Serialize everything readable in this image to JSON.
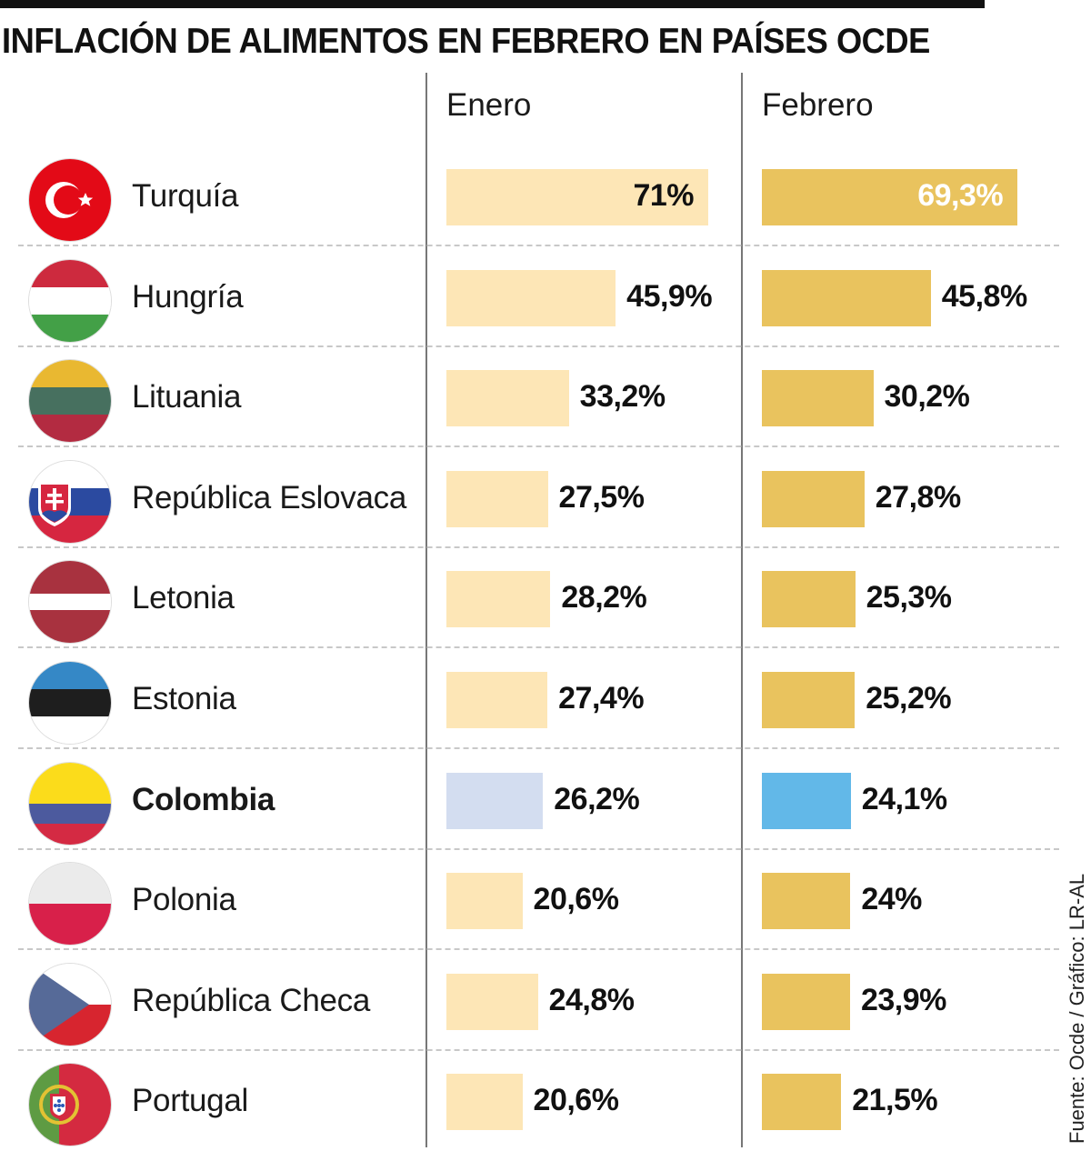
{
  "title": "INFLACIÓN DE ALIMENTOS EN FEBRERO EN PAÍSES OCDE",
  "source": "Fuente: Ocde / Gráfico: LR-AL",
  "colors": {
    "enero_bar": "#fde6b6",
    "febrero_bar": "#e9c35e",
    "colombia_enero_bar": "#d3ddf0",
    "colombia_febrero_bar": "#62b8e8",
    "separator": "#c8c8c8",
    "divider": "#777777"
  },
  "chart_data": {
    "type": "bar",
    "orientation": "horizontal",
    "title": "INFLACIÓN DE ALIMENTOS EN FEBRERO EN PAÍSES OCDE",
    "xlabel": "",
    "ylabel": "",
    "unit": "%",
    "xlim": [
      0,
      75
    ],
    "grid": false,
    "legend": "none",
    "highlight": "Colombia",
    "categories": [
      "Turquía",
      "Hungría",
      "Lituania",
      "República Eslovaca",
      "Letonia",
      "Estonia",
      "Colombia",
      "Polonia",
      "República Checa",
      "Portugal"
    ],
    "series": [
      {
        "name": "Enero",
        "values": [
          71,
          45.9,
          33.2,
          27.5,
          28.2,
          27.4,
          26.2,
          20.6,
          24.8,
          20.6
        ],
        "labels": [
          "71%",
          "45,9%",
          "33,2%",
          "27,5%",
          "28,2%",
          "27,4%",
          "26,2%",
          "20,6%",
          "24,8%",
          "20,6%"
        ]
      },
      {
        "name": "Febrero",
        "values": [
          69.3,
          45.8,
          30.2,
          27.8,
          25.3,
          25.2,
          24.1,
          24,
          23.9,
          21.5
        ],
        "labels": [
          "69,3%",
          "45,8%",
          "30,2%",
          "27,8%",
          "25,3%",
          "25,2%",
          "24,1%",
          "24%",
          "23,9%",
          "21,5%"
        ]
      }
    ]
  },
  "countries": [
    {
      "name": "Turquía",
      "flag": "turkey-flag-icon",
      "bold": false
    },
    {
      "name": "Hungría",
      "flag": "hungary-flag-icon",
      "bold": false
    },
    {
      "name": "Lituania",
      "flag": "lithuania-flag-icon",
      "bold": false
    },
    {
      "name": "República Eslovaca",
      "flag": "slovakia-flag-icon",
      "bold": false
    },
    {
      "name": "Letonia",
      "flag": "latvia-flag-icon",
      "bold": false
    },
    {
      "name": "Estonia",
      "flag": "estonia-flag-icon",
      "bold": false
    },
    {
      "name": "Colombia",
      "flag": "colombia-flag-icon",
      "bold": true
    },
    {
      "name": "Polonia",
      "flag": "poland-flag-icon",
      "bold": false
    },
    {
      "name": "República Checa",
      "flag": "czech-flag-icon",
      "bold": false
    },
    {
      "name": "Portugal",
      "flag": "portugal-flag-icon",
      "bold": false
    }
  ]
}
